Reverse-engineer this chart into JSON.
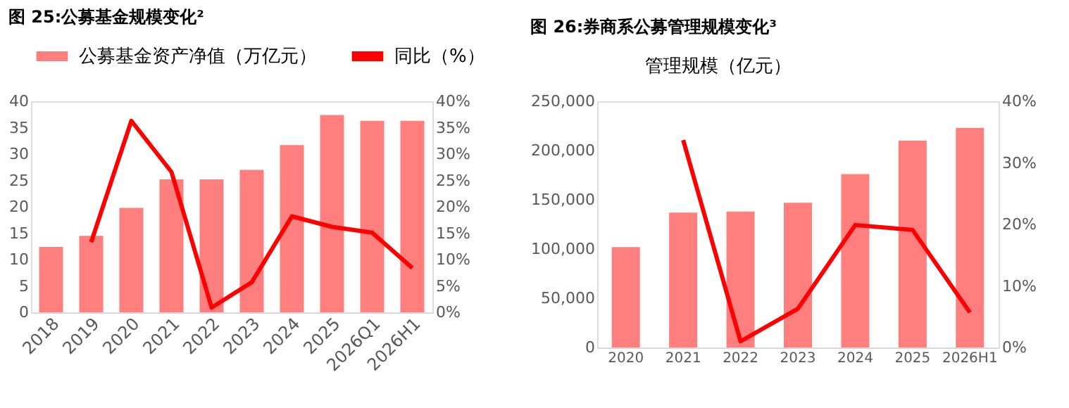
{
  "chart_data": [
    {
      "type": "bar",
      "title": "图 25:公募基金规模变化²",
      "categories": [
        "2018",
        "2019",
        "2020",
        "2021",
        "2022",
        "2023",
        "2024",
        "2025",
        "2026Q1",
        "2026H1"
      ],
      "series": [
        {
          "name": "公募基金资产净值（万亿元）",
          "color": "#ff7f7f",
          "values": [
            12.4,
            14.5,
            19.8,
            25.2,
            25.2,
            27.0,
            31.7,
            37.4,
            36.3,
            36.3
          ]
        },
        {
          "name": "同比（%）",
          "type": "line",
          "axis": "y2",
          "color": "#ff0000",
          "values": [
            null,
            13.3,
            36.3,
            26.6,
            0.9,
            5.7,
            18.2,
            16.2,
            15.1,
            8.4
          ]
        }
      ],
      "ylim": [
        0,
        40
      ],
      "yticks": [
        0,
        5,
        10,
        15,
        20,
        25,
        30,
        35,
        40
      ],
      "y2lim": [
        0,
        40
      ],
      "y2ticks": [
        {
          "value": 0,
          "label": "0%"
        },
        {
          "value": 5,
          "label": "5%"
        },
        {
          "value": 10,
          "label": "10%"
        },
        {
          "value": 15,
          "label": "15%"
        },
        {
          "value": 20,
          "label": "20%"
        },
        {
          "value": 25,
          "label": "25%"
        },
        {
          "value": 30,
          "label": "30%"
        },
        {
          "value": 35,
          "label": "35%"
        },
        {
          "value": 40,
          "label": "40%"
        }
      ],
      "grid": false,
      "legend": "top",
      "marker": "none",
      "line_style": "solid"
    },
    {
      "type": "bar",
      "title": "图 26:券商系公募管理规模变化³",
      "categories": [
        "2020",
        "2021",
        "2022",
        "2023",
        "2024",
        "2025",
        "2026H1"
      ],
      "series": [
        {
          "name": "管理规模（亿元）",
          "color": "#ff7f7f",
          "values": [
            102000,
            137000,
            138000,
            147000,
            176000,
            210000,
            223000
          ]
        },
        {
          "type": "line",
          "axis": "y2",
          "color": "#ff0000",
          "values": [
            null,
            33.7,
            1.0,
            6.3,
            19.9,
            19.1,
            5.7
          ]
        }
      ],
      "ylim": [
        0,
        250000
      ],
      "yticks": [
        {
          "value": 0,
          "label": "0"
        },
        {
          "value": 50000,
          "label": "50,000"
        },
        {
          "value": 100000,
          "label": "100,000"
        },
        {
          "value": 150000,
          "label": "150,000"
        },
        {
          "value": 200000,
          "label": "200,000"
        },
        {
          "value": 250000,
          "label": "250,000"
        }
      ],
      "y2lim": [
        0,
        40
      ],
      "y2ticks": [
        {
          "value": 0,
          "label": "0%"
        },
        {
          "value": 10,
          "label": "10%"
        },
        {
          "value": 20,
          "label": "20%"
        },
        {
          "value": 30,
          "label": "30%"
        },
        {
          "value": 40,
          "label": "40%"
        }
      ],
      "grid": false,
      "legend": "top",
      "marker": "none",
      "line_style": "solid"
    }
  ]
}
